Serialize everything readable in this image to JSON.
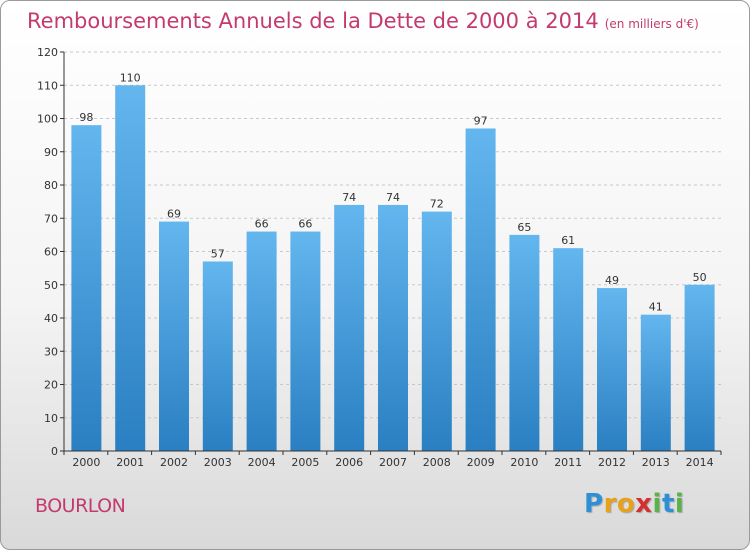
{
  "header": {
    "title": "Remboursements Annuels de la Dette de 2000 à 2014",
    "subtitle": "(en milliers d'€)"
  },
  "commune": "BOURLON",
  "logo": {
    "text": "Proxiti"
  },
  "colors": {
    "bar_light": "#63b6ee",
    "bar_dark": "#2a7fc2",
    "title": "#c43a6e",
    "axis": "#333333"
  },
  "chart_data": {
    "type": "bar",
    "title": "Remboursements Annuels de la Dette de 2000 à 2014",
    "subtitle": "(en milliers d'€)",
    "xlabel": "",
    "ylabel": "",
    "categories": [
      "2000",
      "2001",
      "2002",
      "2003",
      "2004",
      "2005",
      "2006",
      "2007",
      "2008",
      "2009",
      "2010",
      "2011",
      "2012",
      "2013",
      "2014"
    ],
    "values": [
      98,
      110,
      69,
      57,
      66,
      66,
      74,
      74,
      72,
      97,
      65,
      61,
      49,
      41,
      50
    ],
    "ylim": [
      0,
      120
    ],
    "yticks": [
      0,
      10,
      20,
      30,
      40,
      50,
      60,
      70,
      80,
      90,
      100,
      110,
      120
    ],
    "grid": true,
    "data_labels": true
  }
}
